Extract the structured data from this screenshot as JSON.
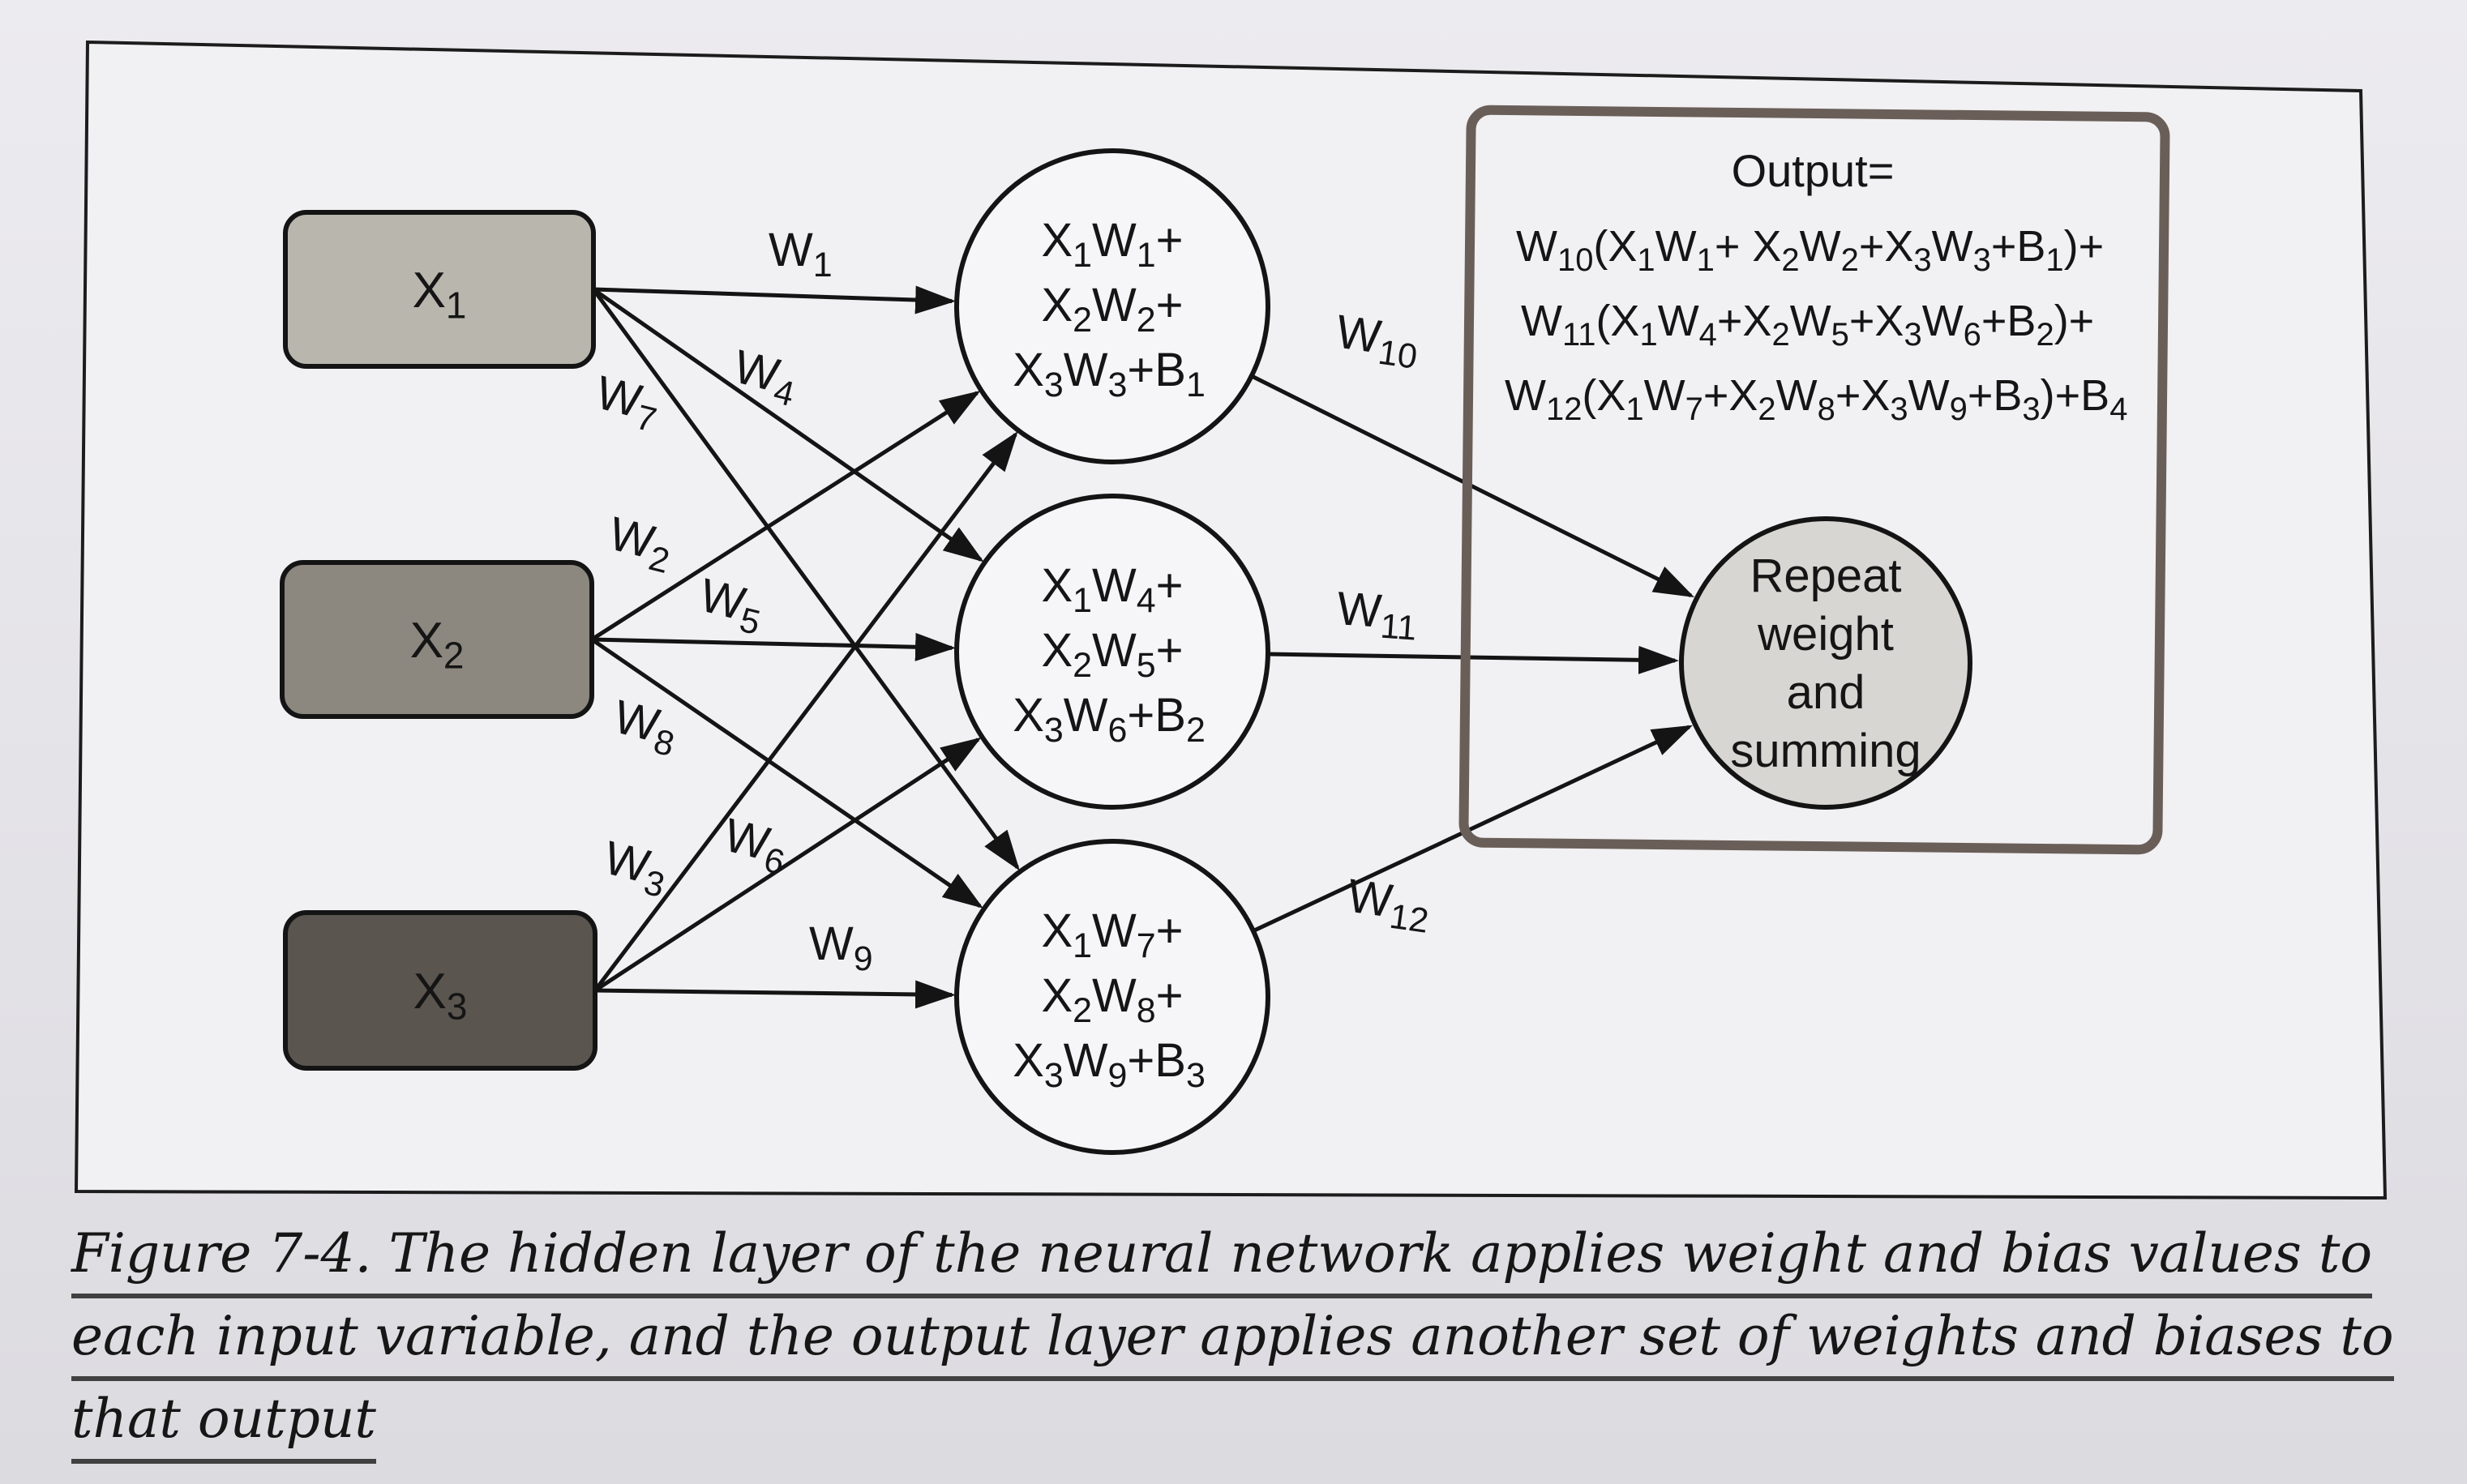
{
  "diagram": {
    "inputs": [
      {
        "label": "X",
        "sub": "1",
        "fill": "#b9b6ae"
      },
      {
        "label": "X",
        "sub": "2",
        "fill": "#8c877f"
      },
      {
        "label": "X",
        "sub": "3",
        "fill": "#5a554f"
      }
    ],
    "hidden": [
      [
        [
          [
            "X",
            "1"
          ],
          [
            "W",
            "1"
          ],
          [
            "+",
            ""
          ]
        ],
        [
          [
            "X",
            "2"
          ],
          [
            "W",
            "2"
          ],
          [
            "+",
            ""
          ]
        ],
        [
          [
            "X",
            "3"
          ],
          [
            "W",
            "3"
          ],
          [
            "+",
            ""
          ],
          [
            "B",
            "1"
          ]
        ]
      ],
      [
        [
          [
            "X",
            "1"
          ],
          [
            "W",
            "4"
          ],
          [
            "+",
            ""
          ]
        ],
        [
          [
            "X",
            "2"
          ],
          [
            "W",
            "5"
          ],
          [
            "+",
            ""
          ]
        ],
        [
          [
            "X",
            "3"
          ],
          [
            "W",
            "6"
          ],
          [
            "+",
            ""
          ],
          [
            "B",
            "2"
          ]
        ]
      ],
      [
        [
          [
            "X",
            "1"
          ],
          [
            "W",
            "7"
          ],
          [
            "+",
            ""
          ]
        ],
        [
          [
            "X",
            "2"
          ],
          [
            "W",
            "8"
          ],
          [
            "+",
            ""
          ]
        ],
        [
          [
            "X",
            "3"
          ],
          [
            "W",
            "9"
          ],
          [
            "+",
            ""
          ],
          [
            "B",
            "3"
          ]
        ]
      ]
    ],
    "weights": [
      [
        "W",
        "1"
      ],
      [
        "W",
        "4"
      ],
      [
        "W",
        "7"
      ],
      [
        "W",
        "2"
      ],
      [
        "W",
        "5"
      ],
      [
        "W",
        "8"
      ],
      [
        "W",
        "3"
      ],
      [
        "W",
        "6"
      ],
      [
        "W",
        "9"
      ],
      [
        "W",
        "10"
      ],
      [
        "W",
        "11"
      ],
      [
        "W",
        "12"
      ]
    ],
    "output_box": {
      "title": "Output=",
      "lines": [
        [
          [
            "W",
            "10"
          ],
          [
            "(X",
            "1"
          ],
          [
            "W",
            "1"
          ],
          [
            "+ X",
            "2"
          ],
          [
            "W",
            "2"
          ],
          [
            "+X",
            "3"
          ],
          [
            "W",
            "3"
          ],
          [
            "+B",
            "1"
          ],
          [
            ")+",
            ""
          ]
        ],
        [
          [
            "W",
            "11"
          ],
          [
            "(X",
            "1"
          ],
          [
            "W",
            "4"
          ],
          [
            "+X",
            "2"
          ],
          [
            "W",
            "5"
          ],
          [
            "+X",
            "3"
          ],
          [
            "W",
            "6"
          ],
          [
            "+B",
            "2"
          ],
          [
            ")+",
            ""
          ]
        ],
        [
          [
            "W",
            "12"
          ],
          [
            "(X",
            "1"
          ],
          [
            "W",
            "7"
          ],
          [
            "+X",
            "2"
          ],
          [
            "W",
            "8"
          ],
          [
            "+X",
            "3"
          ],
          [
            "W",
            "9"
          ],
          [
            "+B",
            "3"
          ],
          [
            ")+B",
            "4"
          ]
        ]
      ]
    },
    "output_node": {
      "lines": [
        "Repeat",
        "weight",
        "and",
        "summing"
      ],
      "fill": "#d8d6d2"
    }
  },
  "caption": {
    "lines": [
      "Figure 7-4. The hidden layer of the neural network applies weight and bias values to",
      "each input variable, and the output layer applies another set of weights and biases to",
      "that output"
    ]
  }
}
